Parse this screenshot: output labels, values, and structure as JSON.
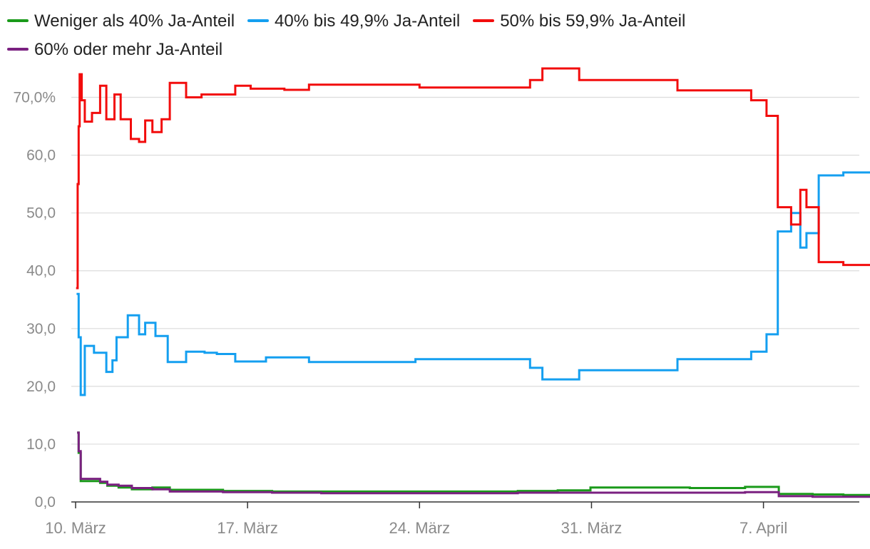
{
  "chart_data": {
    "type": "line",
    "title": "",
    "xlabel": "",
    "ylabel": "",
    "x_range": [
      "2021-03-10",
      "2021-04-13"
    ],
    "ylim": [
      0,
      75
    ],
    "y_ticks": [
      0,
      10,
      20,
      30,
      40,
      50,
      60,
      70
    ],
    "y_tick_labels": [
      "0,0",
      "10,0",
      "20,0",
      "30,0",
      "40,0",
      "50,0",
      "60,0",
      "70,0%"
    ],
    "x_ticks": [
      "2021-03-10",
      "2021-03-17",
      "2021-03-24",
      "2021-03-31",
      "2021-04-07"
    ],
    "x_tick_labels": [
      "10. März",
      "17. März",
      "24. März",
      "31. März",
      "7. April"
    ],
    "grid": "horizontal",
    "legend_position": "top",
    "series": [
      {
        "name": "Weniger als 40% Ja-Anteil",
        "color": "#1a9a1a",
        "points": [
          [
            "2021-03-10T01:30",
            12.0
          ],
          [
            "2021-03-10T03:00",
            8.5
          ],
          [
            "2021-03-10T05:00",
            3.6
          ],
          [
            "2021-03-11T00:00",
            3.3
          ],
          [
            "2021-03-11T07:00",
            2.8
          ],
          [
            "2021-03-11T18:00",
            2.5
          ],
          [
            "2021-03-12T07:00",
            2.2
          ],
          [
            "2021-03-13T03:00",
            2.5
          ],
          [
            "2021-03-13T20:00",
            2.1
          ],
          [
            "2021-03-16T00:00",
            1.9
          ],
          [
            "2021-03-18T00:00",
            1.8
          ],
          [
            "2021-03-20T00:00",
            1.8
          ],
          [
            "2021-03-24T00:00",
            1.8
          ],
          [
            "2021-03-28T00:00",
            1.9
          ],
          [
            "2021-03-29T15:00",
            2.0
          ],
          [
            "2021-03-30T23:00",
            2.5
          ],
          [
            "2021-04-04T00:00",
            2.4
          ],
          [
            "2021-04-06T06:00",
            2.6
          ],
          [
            "2021-04-07T15:00",
            1.4
          ],
          [
            "2021-04-09T00:00",
            1.3
          ],
          [
            "2021-04-10T06:00",
            1.2
          ],
          [
            "2021-04-13T00:00",
            1.1
          ]
        ]
      },
      {
        "name": "40% bis 49,9% Ja-Anteil",
        "color": "#149ff0",
        "points": [
          [
            "2021-03-10T01:00",
            36.0
          ],
          [
            "2021-03-10T03:00",
            28.5
          ],
          [
            "2021-03-10T05:00",
            18.5
          ],
          [
            "2021-03-10T09:00",
            27.0
          ],
          [
            "2021-03-10T18:00",
            25.8
          ],
          [
            "2021-03-11T06:00",
            22.5
          ],
          [
            "2021-03-11T12:00",
            24.5
          ],
          [
            "2021-03-11T16:00",
            28.5
          ],
          [
            "2021-03-12T03:00",
            32.3
          ],
          [
            "2021-03-12T14:00",
            29.0
          ],
          [
            "2021-03-12T20:00",
            31.0
          ],
          [
            "2021-03-13T06:00",
            28.7
          ],
          [
            "2021-03-13T18:00",
            24.2
          ],
          [
            "2021-03-14T12:00",
            26.0
          ],
          [
            "2021-03-15T06:00",
            25.8
          ],
          [
            "2021-03-15T18:00",
            25.6
          ],
          [
            "2021-03-16T12:00",
            24.3
          ],
          [
            "2021-03-17T18:00",
            25.0
          ],
          [
            "2021-03-19T12:00",
            24.2
          ],
          [
            "2021-03-23T20:00",
            24.7
          ],
          [
            "2021-03-28T12:00",
            23.2
          ],
          [
            "2021-03-29T00:00",
            21.2
          ],
          [
            "2021-03-30T12:00",
            22.8
          ],
          [
            "2021-04-03T12:00",
            24.7
          ],
          [
            "2021-04-06T12:00",
            26.0
          ],
          [
            "2021-04-07T03:00",
            29.0
          ],
          [
            "2021-04-07T14:00",
            46.8
          ],
          [
            "2021-04-08T03:00",
            50.0
          ],
          [
            "2021-04-08T12:00",
            44.0
          ],
          [
            "2021-04-08T18:00",
            46.5
          ],
          [
            "2021-04-09T06:00",
            56.5
          ],
          [
            "2021-04-10T06:00",
            57.0
          ],
          [
            "2021-04-13T00:00",
            57.0
          ]
        ]
      },
      {
        "name": "50% bis 59,9% Ja-Anteil",
        "color": "#f20c0c",
        "points": [
          [
            "2021-03-10T00:30",
            37.0
          ],
          [
            "2021-03-10T02:00",
            55.0
          ],
          [
            "2021-03-10T03:00",
            65.0
          ],
          [
            "2021-03-10T04:00",
            74.0
          ],
          [
            "2021-03-10T06:00",
            69.5
          ],
          [
            "2021-03-10T09:00",
            65.8
          ],
          [
            "2021-03-10T16:00",
            67.3
          ],
          [
            "2021-03-11T00:00",
            72.0
          ],
          [
            "2021-03-11T06:00",
            66.2
          ],
          [
            "2021-03-11T14:00",
            70.5
          ],
          [
            "2021-03-11T20:00",
            66.2
          ],
          [
            "2021-03-12T06:00",
            62.8
          ],
          [
            "2021-03-12T14:00",
            62.3
          ],
          [
            "2021-03-12T20:00",
            66.0
          ],
          [
            "2021-03-13T03:00",
            64.0
          ],
          [
            "2021-03-13T12:00",
            66.2
          ],
          [
            "2021-03-13T20:00",
            72.5
          ],
          [
            "2021-03-14T12:00",
            70.0
          ],
          [
            "2021-03-15T03:00",
            70.5
          ],
          [
            "2021-03-16T00:00",
            70.5
          ],
          [
            "2021-03-16T12:00",
            72.0
          ],
          [
            "2021-03-17T03:00",
            71.5
          ],
          [
            "2021-03-18T12:00",
            71.3
          ],
          [
            "2021-03-19T12:00",
            72.2
          ],
          [
            "2021-03-24T00:00",
            71.7
          ],
          [
            "2021-03-28T12:00",
            73.0
          ],
          [
            "2021-03-29T00:00",
            75.0
          ],
          [
            "2021-03-30T12:00",
            73.0
          ],
          [
            "2021-04-03T12:00",
            71.2
          ],
          [
            "2021-04-06T12:00",
            69.5
          ],
          [
            "2021-04-07T03:00",
            66.8
          ],
          [
            "2021-04-07T14:00",
            51.0
          ],
          [
            "2021-04-08T03:00",
            48.0
          ],
          [
            "2021-04-08T12:00",
            54.0
          ],
          [
            "2021-04-08T18:00",
            51.0
          ],
          [
            "2021-04-09T06:00",
            41.5
          ],
          [
            "2021-04-10T06:00",
            41.0
          ],
          [
            "2021-04-13T00:00",
            41.2
          ]
        ]
      },
      {
        "name": "60% oder mehr Ja-Anteil",
        "color": "#7a2080",
        "points": [
          [
            "2021-03-10T01:30",
            12.0
          ],
          [
            "2021-03-10T03:00",
            8.8
          ],
          [
            "2021-03-10T05:00",
            4.0
          ],
          [
            "2021-03-11T00:00",
            3.5
          ],
          [
            "2021-03-11T07:00",
            3.0
          ],
          [
            "2021-03-11T18:00",
            2.8
          ],
          [
            "2021-03-12T07:00",
            2.4
          ],
          [
            "2021-03-13T03:00",
            2.2
          ],
          [
            "2021-03-13T20:00",
            1.8
          ],
          [
            "2021-03-16T00:00",
            1.7
          ],
          [
            "2021-03-18T00:00",
            1.6
          ],
          [
            "2021-03-20T00:00",
            1.5
          ],
          [
            "2021-03-24T00:00",
            1.5
          ],
          [
            "2021-03-28T00:00",
            1.6
          ],
          [
            "2021-03-30T23:00",
            1.6
          ],
          [
            "2021-04-04T00:00",
            1.6
          ],
          [
            "2021-04-06T06:00",
            1.7
          ],
          [
            "2021-04-07T15:00",
            1.0
          ],
          [
            "2021-04-09T00:00",
            0.9
          ],
          [
            "2021-04-13T00:00",
            0.9
          ]
        ]
      }
    ]
  }
}
